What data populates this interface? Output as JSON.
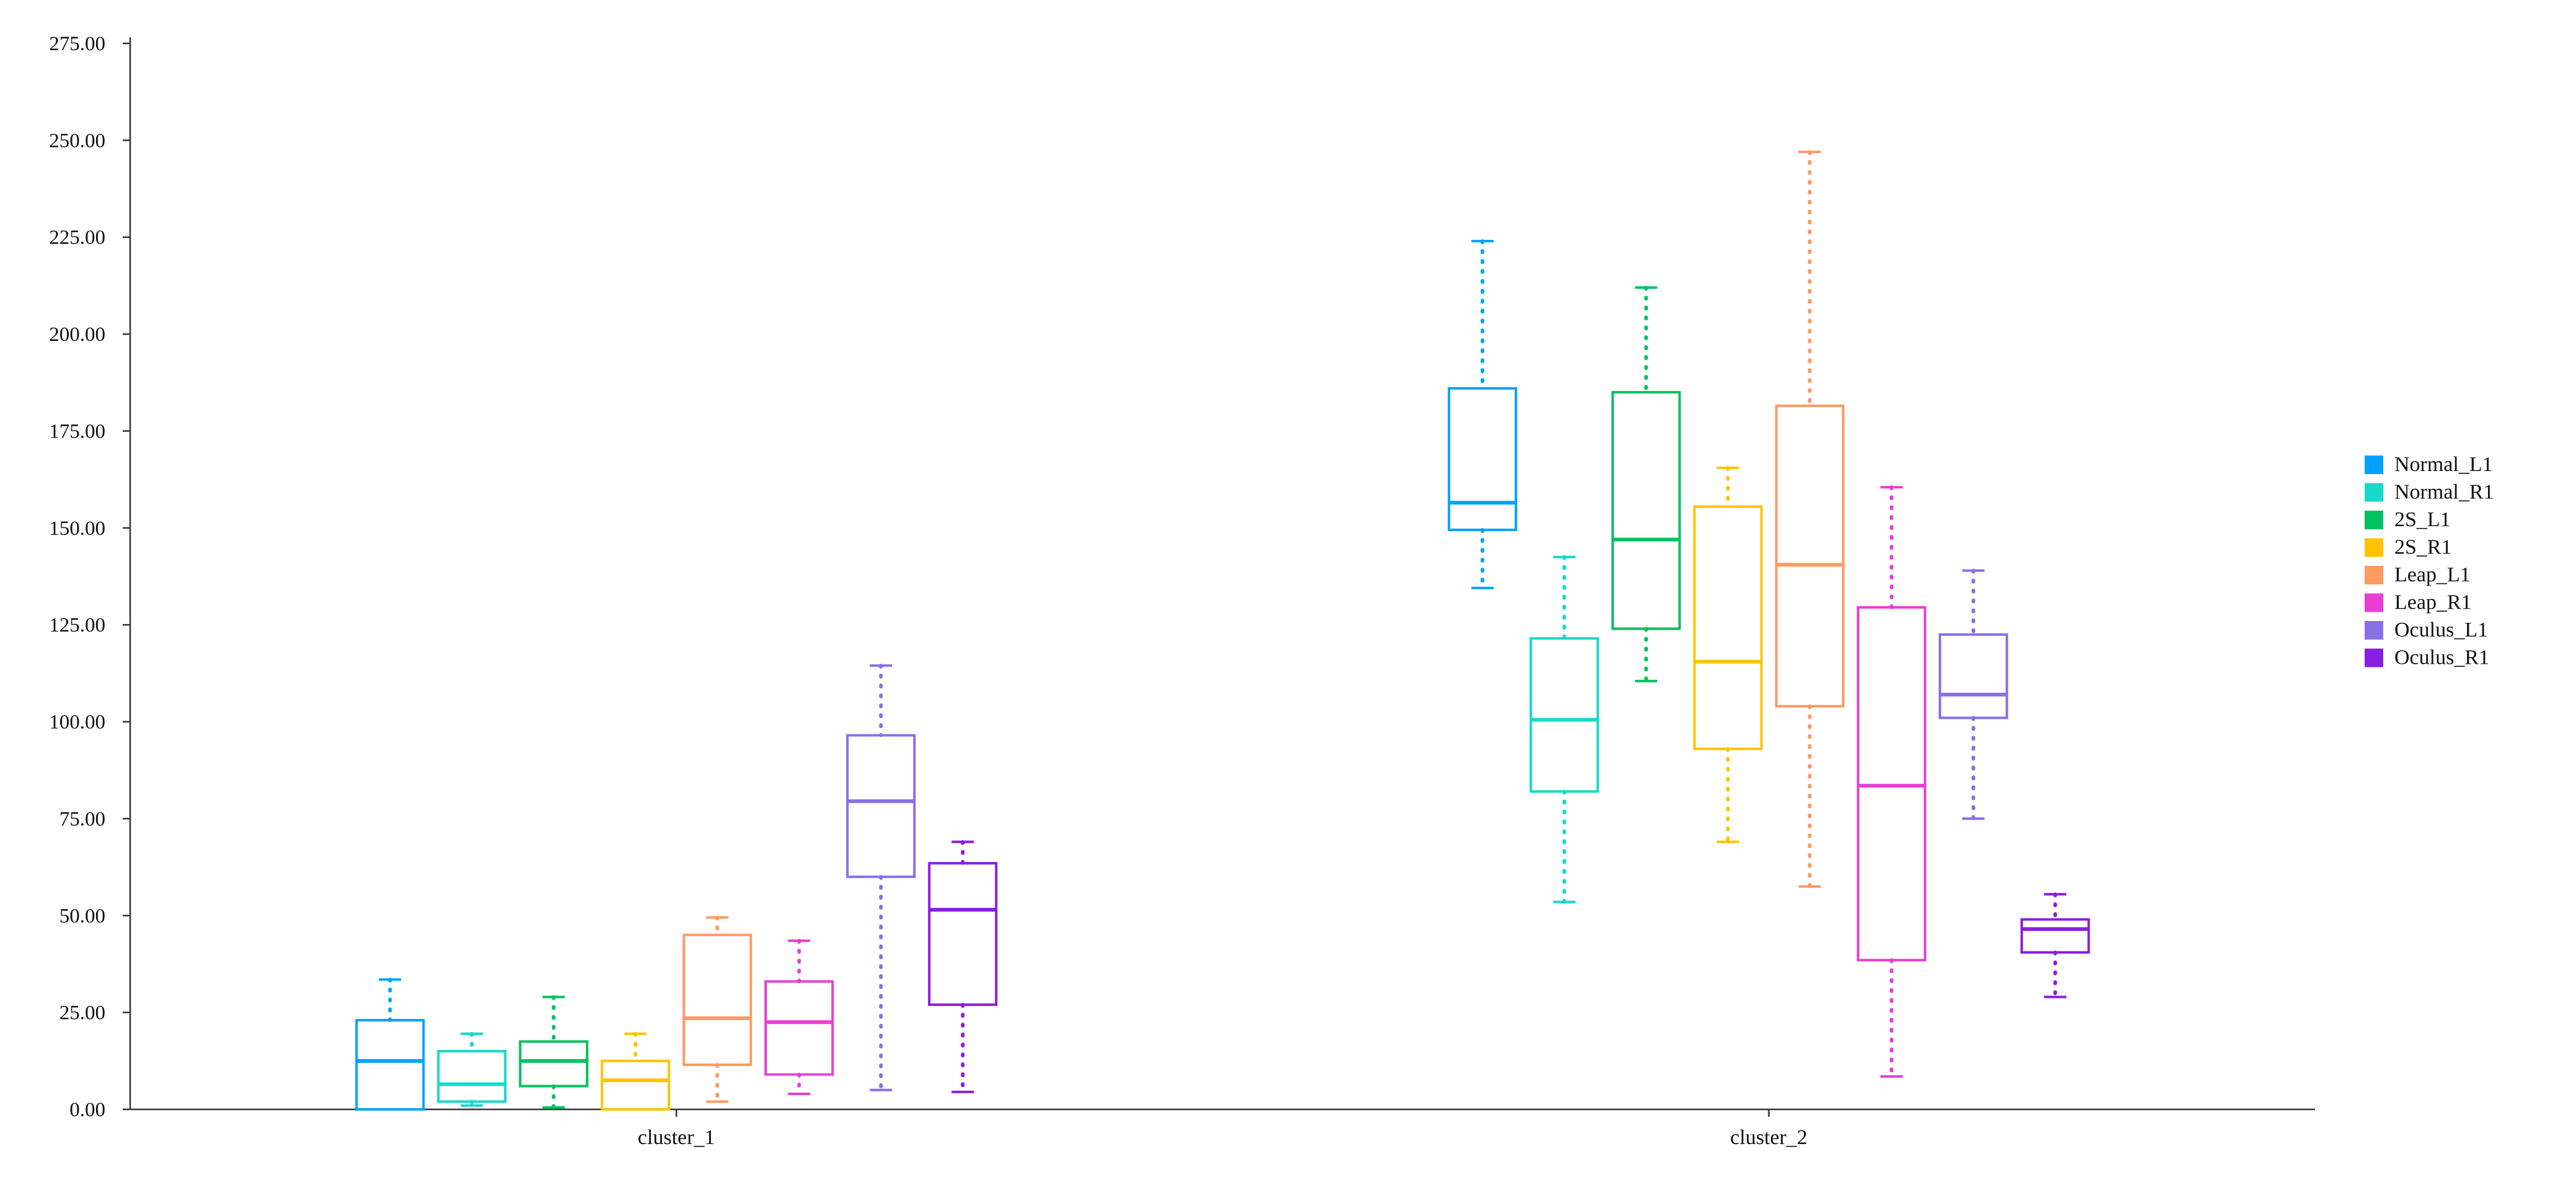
{
  "chart_data": {
    "type": "box",
    "title": "",
    "xlabel": "",
    "ylabel": "",
    "ylim": [
      0,
      275
    ],
    "yticks": [
      "0.00",
      "25.00",
      "50.00",
      "75.00",
      "100.00",
      "125.00",
      "150.00",
      "175.00",
      "200.00",
      "225.00",
      "250.00",
      "275.00"
    ],
    "categories": [
      "cluster_1",
      "cluster_2"
    ],
    "grid": false,
    "legend": {
      "position": "right"
    },
    "series": [
      {
        "name": "Normal_L1",
        "color": "#00a2ff",
        "boxes": [
          {
            "min": 0,
            "q1": 0,
            "median": 12.5,
            "q3": 23,
            "max": 33.5
          },
          {
            "min": 134.5,
            "q1": 149.5,
            "median": 156.5,
            "q3": 186,
            "max": 224
          }
        ]
      },
      {
        "name": "Normal_R1",
        "color": "#17d9cc",
        "boxes": [
          {
            "min": 1,
            "q1": 2,
            "median": 6.5,
            "q3": 15,
            "max": 19.5
          },
          {
            "min": 53.5,
            "q1": 82,
            "median": 100.5,
            "q3": 121.5,
            "max": 142.5
          }
        ]
      },
      {
        "name": "2S_L1",
        "color": "#00c160",
        "boxes": [
          {
            "min": 0.5,
            "q1": 6,
            "median": 12.5,
            "q3": 17.5,
            "max": 29
          },
          {
            "min": 110.5,
            "q1": 124,
            "median": 147,
            "q3": 185,
            "max": 212
          }
        ]
      },
      {
        "name": "2S_R1",
        "color": "#ffc300",
        "boxes": [
          {
            "min": 0,
            "q1": 0,
            "median": 7.5,
            "q3": 12.5,
            "max": 19.5
          },
          {
            "min": 69,
            "q1": 93,
            "median": 115.5,
            "q3": 155.5,
            "max": 165.5
          }
        ]
      },
      {
        "name": "Leap_L1",
        "color": "#ff9a61",
        "boxes": [
          {
            "min": 2,
            "q1": 11.5,
            "median": 23.5,
            "q3": 45,
            "max": 49.5
          },
          {
            "min": 57.5,
            "q1": 104,
            "median": 140.5,
            "q3": 181.5,
            "max": 247
          }
        ]
      },
      {
        "name": "Leap_R1",
        "color": "#e83ed4",
        "boxes": [
          {
            "min": 4,
            "q1": 9,
            "median": 22.5,
            "q3": 33,
            "max": 43.5
          },
          {
            "min": 8.5,
            "q1": 38.5,
            "median": 83.5,
            "q3": 129.5,
            "max": 160.5
          }
        ]
      },
      {
        "name": "Oculus_L1",
        "color": "#8a6fe8",
        "boxes": [
          {
            "min": 5,
            "q1": 60,
            "median": 79.5,
            "q3": 96.5,
            "max": 114.5
          },
          {
            "min": 75,
            "q1": 101,
            "median": 107,
            "q3": 122.5,
            "max": 139
          }
        ]
      },
      {
        "name": "Oculus_R1",
        "color": "#8a1ee0",
        "boxes": [
          {
            "min": 4.5,
            "q1": 27,
            "median": 51.5,
            "q3": 63.5,
            "max": 69
          },
          {
            "min": 29,
            "q1": 40.5,
            "median": 46.5,
            "q3": 49,
            "max": 55.5
          }
        ]
      }
    ]
  }
}
